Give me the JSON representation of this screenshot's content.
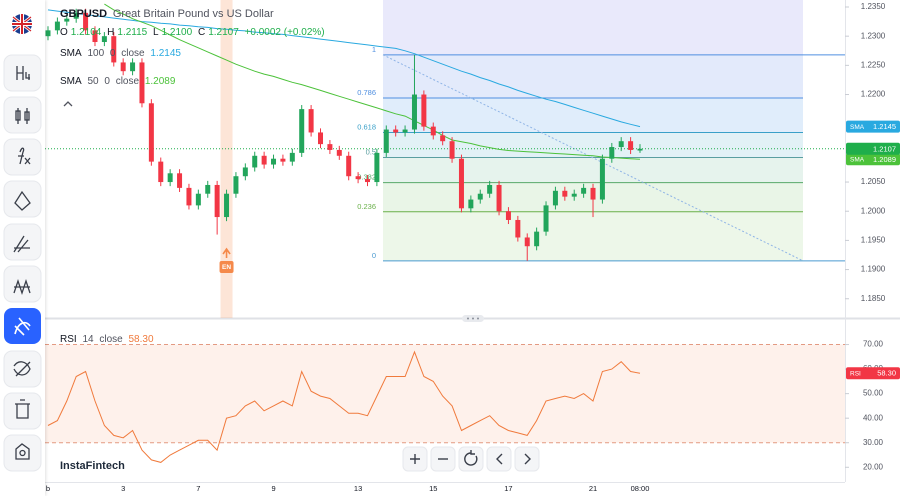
{
  "brand": "InstaFintech",
  "chart_data": [
    {
      "type": "candlestick",
      "symbol": "GBPUSD",
      "title": "Great Britain Pound vs US Dollar",
      "ohlc_legend": {
        "labels": [
          "O",
          "H",
          "L",
          "C"
        ],
        "values": [
          "1.2104",
          "1.2115",
          "1.2100",
          "1.2107"
        ],
        "change": "+0.0002 (+0.02%)"
      },
      "categories": [
        "b",
        null,
        null,
        null,
        null,
        null,
        null,
        null,
        "3",
        null,
        null,
        null,
        null,
        null,
        null,
        null,
        "7",
        null,
        null,
        null,
        null,
        null,
        null,
        null,
        "9",
        null,
        null,
        null,
        null,
        null,
        null,
        null,
        null,
        "13",
        null,
        null,
        null,
        null,
        null,
        null,
        null,
        "15",
        null,
        null,
        null,
        null,
        null,
        null,
        null,
        "17",
        null,
        null,
        null,
        null,
        null,
        null,
        null,
        null,
        "21",
        null,
        null,
        null,
        null,
        "08:00"
      ],
      "open": [
        1.23,
        1.231,
        1.2325,
        1.233,
        1.234,
        1.231,
        1.229,
        1.23,
        1.2255,
        1.224,
        1.2255,
        1.2185,
        1.2085,
        1.205,
        1.2065,
        1.204,
        1.201,
        1.203,
        1.2045,
        1.199,
        1.203,
        1.206,
        1.2075,
        1.2095,
        1.208,
        1.209,
        1.2085,
        1.21,
        1.2175,
        1.2135,
        1.2115,
        1.2105,
        1.2095,
        1.206,
        1.2055,
        1.205,
        1.21,
        1.214,
        1.2135,
        1.214,
        1.22,
        1.2145,
        1.213,
        1.212,
        1.209,
        1.2005,
        1.202,
        1.203,
        1.2045,
        1.2,
        1.1985,
        1.1955,
        1.194,
        1.1965,
        1.201,
        1.2035,
        1.2025,
        1.203,
        1.204,
        1.202,
        1.209,
        1.211,
        1.212,
        1.2104
      ],
      "high": [
        1.2317,
        1.2332,
        1.2337,
        1.2347,
        1.2347,
        1.2317,
        1.2307,
        1.2307,
        1.2262,
        1.2262,
        1.2262,
        1.2192,
        1.2092,
        1.2072,
        1.2072,
        1.2047,
        1.2037,
        1.2052,
        1.2052,
        1.2037,
        1.2067,
        1.2082,
        1.2102,
        1.2102,
        1.2097,
        1.2097,
        1.2107,
        1.2182,
        1.2182,
        1.2142,
        1.2122,
        1.2112,
        1.2102,
        1.2067,
        1.2062,
        1.2107,
        1.2147,
        1.2147,
        1.2147,
        1.2268,
        1.2207,
        1.2152,
        1.2137,
        1.2127,
        1.2097,
        1.2027,
        1.2037,
        1.2052,
        1.2052,
        1.2007,
        1.1992,
        1.1962,
        1.1972,
        1.2017,
        1.2042,
        1.2042,
        1.2037,
        1.2047,
        1.2047,
        1.2097,
        1.2117,
        1.2127,
        1.2127,
        1.2115
      ],
      "low": [
        1.2293,
        1.2303,
        1.2318,
        1.2323,
        1.2303,
        1.2283,
        1.2283,
        1.2248,
        1.2233,
        1.2233,
        1.2178,
        1.2078,
        1.2043,
        1.2043,
        1.2033,
        1.2003,
        1.2003,
        1.2023,
        1.196,
        1.1983,
        1.2023,
        1.2053,
        1.2068,
        1.2073,
        1.2073,
        1.2078,
        1.2078,
        1.2093,
        1.2128,
        1.2108,
        1.2098,
        1.2088,
        1.2053,
        1.2048,
        1.2043,
        1.2043,
        1.2093,
        1.2128,
        1.2128,
        1.2133,
        1.2138,
        1.2123,
        1.2113,
        1.2083,
        1.1998,
        1.1998,
        1.2013,
        1.2023,
        1.1993,
        1.1978,
        1.1948,
        1.1915,
        1.1933,
        1.1958,
        1.2003,
        1.2018,
        1.2018,
        1.2023,
        1.199,
        1.2013,
        1.2083,
        1.2103,
        1.2098,
        1.21
      ],
      "close": [
        1.231,
        1.2325,
        1.233,
        1.234,
        1.231,
        1.229,
        1.23,
        1.2255,
        1.224,
        1.2255,
        1.2185,
        1.2085,
        1.205,
        1.2065,
        1.204,
        1.201,
        1.203,
        1.2045,
        1.199,
        1.203,
        1.206,
        1.2075,
        1.2095,
        1.208,
        1.209,
        1.2085,
        1.21,
        1.2175,
        1.2135,
        1.2115,
        1.2105,
        1.2095,
        1.206,
        1.2055,
        1.205,
        1.21,
        1.214,
        1.2135,
        1.214,
        1.22,
        1.2145,
        1.213,
        1.212,
        1.209,
        1.2005,
        1.202,
        1.203,
        1.2045,
        1.2,
        1.1985,
        1.1955,
        1.194,
        1.1965,
        1.201,
        1.2035,
        1.2025,
        1.203,
        1.204,
        1.202,
        1.209,
        1.211,
        1.212,
        1.2105,
        1.2107
      ],
      "up_color": "#22a55b",
      "down_color": "#f23645",
      "series": [
        {
          "name": "SMA",
          "period": 100,
          "offset": 0,
          "source": "close",
          "color": "#29a9e0",
          "value_label": "1.2145",
          "values": [
            1.2345,
            1.2343,
            1.2341,
            1.2339,
            1.2337,
            1.2335,
            1.2333,
            1.2331,
            1.2329,
            1.2327,
            1.2325,
            1.2324,
            1.2322,
            1.2321,
            1.2319,
            1.2318,
            1.2316,
            1.2315,
            1.2313,
            1.2312,
            1.231,
            1.2309,
            1.2307,
            1.2306,
            1.2304,
            1.2303,
            1.2301,
            1.2299,
            1.2297,
            1.2295,
            1.2293,
            1.2291,
            1.2289,
            1.2287,
            1.2285,
            1.2283,
            1.2281,
            1.2279,
            1.2275,
            1.227,
            1.2264,
            1.2258,
            1.2252,
            1.2246,
            1.224,
            1.2235,
            1.2229,
            1.2224,
            1.2218,
            1.2213,
            1.2207,
            1.2202,
            1.2197,
            1.2192,
            1.2188,
            1.2183,
            1.2178,
            1.2173,
            1.2168,
            1.2163,
            1.2158,
            1.2153,
            1.2149,
            1.2145
          ]
        },
        {
          "name": "SMA",
          "period": 50,
          "offset": 0,
          "source": "close",
          "color": "#4cc23a",
          "value_label": "1.2089",
          "values": [
            null,
            null,
            null,
            null,
            null,
            null,
            1.2355,
            1.2345,
            1.2338,
            1.233,
            1.2324,
            1.2318,
            1.231,
            1.2302,
            1.2294,
            1.2287,
            1.228,
            1.2273,
            1.2266,
            1.2259,
            1.2252,
            1.2246,
            1.224,
            1.2235,
            1.2231,
            1.2226,
            1.2221,
            1.2217,
            1.2212,
            1.2207,
            1.2202,
            1.2197,
            1.2192,
            1.2187,
            1.2182,
            1.2177,
            1.2172,
            1.2167,
            1.2163,
            1.2155,
            1.2147,
            1.2139,
            1.213,
            1.2122,
            1.2119,
            1.2116,
            1.2112,
            1.2109,
            1.2106,
            1.2104,
            1.2103,
            1.2102,
            1.2101,
            1.21,
            1.2099,
            1.2098,
            1.2097,
            1.2096,
            1.2095,
            1.2093,
            1.2092,
            1.2091,
            1.209,
            1.2089
          ]
        }
      ],
      "last_price_label": "1.2107",
      "last_price_color": "#1fae4b",
      "events": [
        null,
        null,
        null,
        null,
        null,
        null,
        null,
        null,
        null,
        null,
        null,
        null,
        null,
        null,
        null,
        null,
        null,
        null,
        null,
        "EN",
        null,
        null,
        null,
        null,
        null,
        null,
        null,
        null,
        null,
        null,
        null,
        null,
        null,
        null,
        null,
        null,
        null,
        null,
        null,
        null,
        null,
        null,
        null,
        null,
        null,
        null,
        null,
        null,
        null,
        null,
        null,
        null,
        null,
        null,
        null,
        null,
        null,
        null,
        null,
        null,
        null,
        null,
        null,
        null
      ],
      "event_color": "#f5894a",
      "fibonacci": {
        "levels": [
          1,
          0.786,
          0.618,
          0.5,
          0.382,
          0.236,
          0
        ],
        "prices": [
          1.2268,
          1.2194,
          1.2135,
          1.2092,
          1.2049,
          1.1999,
          1.1915
        ]
      },
      "ylim": [
        1.1817,
        1.2362
      ],
      "yticks": [
        {
          "value": 1.235,
          "label": "1.2350"
        },
        {
          "value": 1.23,
          "label": "1.2300"
        },
        {
          "value": 1.225,
          "label": "1.2250"
        },
        {
          "value": 1.22,
          "label": "1.2200"
        },
        {
          "value": 1.205,
          "label": "1.2050"
        },
        {
          "value": 1.2,
          "label": "1.2000"
        },
        {
          "value": 1.195,
          "label": "1.1950"
        },
        {
          "value": 1.19,
          "label": "1.1900"
        },
        {
          "value": 1.185,
          "label": "1.1850"
        }
      ]
    },
    {
      "type": "line",
      "name": "RSI",
      "period": 14,
      "source": "close",
      "color": "#f07a3c",
      "value_label": "58.30",
      "values": [
        37,
        39,
        47,
        57,
        59,
        47,
        37,
        33,
        32,
        35,
        27,
        23,
        22,
        25,
        27,
        29,
        31,
        31,
        27,
        40,
        41,
        45,
        47,
        43,
        45,
        47,
        45,
        59,
        51,
        49,
        48,
        45,
        42,
        42,
        41,
        49,
        57,
        57,
        57,
        67,
        57,
        55,
        49,
        45,
        35,
        37,
        39,
        41,
        37,
        35,
        34,
        33,
        39,
        47,
        48,
        49,
        48,
        50,
        47,
        59,
        60,
        63,
        59,
        58.3
      ],
      "band": [
        30,
        70
      ],
      "ylim": [
        14,
        80
      ],
      "yticks": [
        {
          "value": 70,
          "label": "70.00"
        },
        {
          "value": 60,
          "label": "60.00"
        },
        {
          "value": 50,
          "label": "50.00"
        },
        {
          "value": 40,
          "label": "40.00"
        },
        {
          "value": 30,
          "label": "30.00"
        },
        {
          "value": 20,
          "label": "20.00"
        }
      ]
    }
  ]
}
